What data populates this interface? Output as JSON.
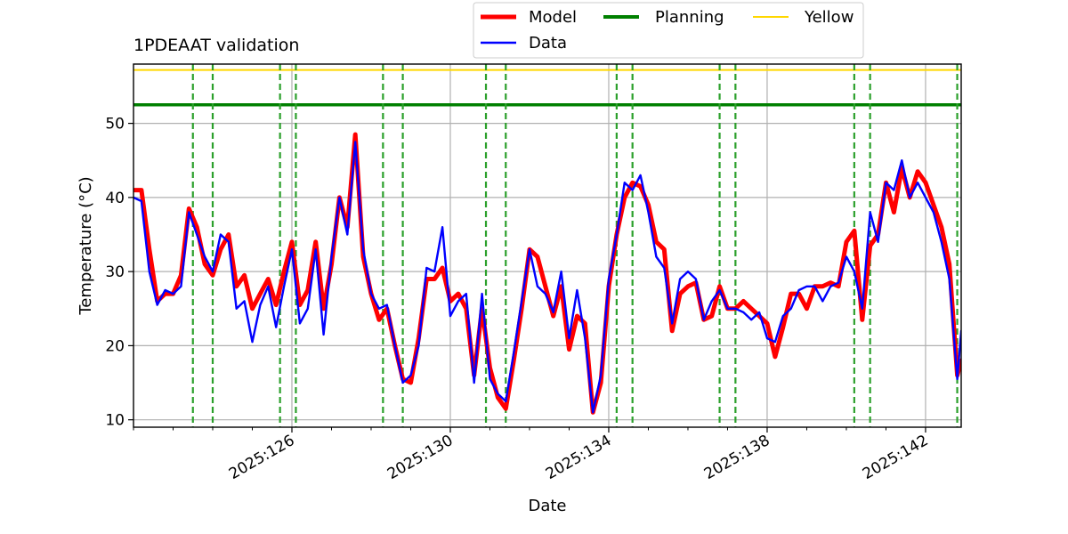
{
  "chart_data": {
    "type": "line",
    "title": "1PDEAAT validation",
    "xlabel": "Date",
    "ylabel": "Temperature ($^\\circ$C)",
    "ylabel_display": "Temperature (°C)",
    "xlim": [
      2025.122,
      2025.1429
    ],
    "ylim": [
      9,
      58
    ],
    "x_tick_values": [
      2025.126,
      2025.13,
      2025.134,
      2025.138,
      2025.142
    ],
    "x_tick_labels": [
      "2025:126",
      "2025:130",
      "2025:134",
      "2025:138",
      "2025:142"
    ],
    "y_ticks": [
      10,
      20,
      30,
      40,
      50
    ],
    "grid": true,
    "legend_position": "top-center (outside)",
    "legend_entries": [
      "Model",
      "Data",
      "Planning",
      "Yellow"
    ],
    "colors": {
      "model": "#ff0000",
      "data": "#0000ff",
      "planning": "#008000",
      "yellow": "#ffd700",
      "vlines": "#2ca02c"
    },
    "hlines": [
      {
        "name": "Planning",
        "y": 52.5
      },
      {
        "name": "Yellow",
        "y": 57.2
      }
    ],
    "vlines_x": [
      2025.1235,
      2025.124,
      2025.1257,
      2025.1261,
      2025.1283,
      2025.1288,
      2025.1309,
      2025.1314,
      2025.1342,
      2025.1346,
      2025.1368,
      2025.1372,
      2025.1402,
      2025.1406,
      2025.1428
    ],
    "series": [
      {
        "name": "Model",
        "x": [
          2025.122,
          2025.1222,
          2025.1224,
          2025.1226,
          2025.1228,
          2025.123,
          2025.1232,
          2025.1234,
          2025.1236,
          2025.1238,
          2025.124,
          2025.1242,
          2025.1244,
          2025.1246,
          2025.1248,
          2025.125,
          2025.1252,
          2025.1254,
          2025.1256,
          2025.1258,
          2025.126,
          2025.1262,
          2025.1264,
          2025.1266,
          2025.1268,
          2025.127,
          2025.1272,
          2025.1274,
          2025.1276,
          2025.1278,
          2025.128,
          2025.1282,
          2025.1284,
          2025.1286,
          2025.1288,
          2025.129,
          2025.1292,
          2025.1294,
          2025.1296,
          2025.1298,
          2025.13,
          2025.1302,
          2025.1304,
          2025.1306,
          2025.1308,
          2025.131,
          2025.1312,
          2025.1314,
          2025.1316,
          2025.1318,
          2025.132,
          2025.1322,
          2025.1324,
          2025.1326,
          2025.1328,
          2025.133,
          2025.1332,
          2025.1334,
          2025.1336,
          2025.1338,
          2025.134,
          2025.1342,
          2025.1344,
          2025.1346,
          2025.1348,
          2025.135,
          2025.1352,
          2025.1354,
          2025.1356,
          2025.1358,
          2025.136,
          2025.1362,
          2025.1364,
          2025.1366,
          2025.1368,
          2025.137,
          2025.1372,
          2025.1374,
          2025.1376,
          2025.1378,
          2025.138,
          2025.1382,
          2025.1384,
          2025.1386,
          2025.1388,
          2025.139,
          2025.1392,
          2025.1394,
          2025.1396,
          2025.1398,
          2025.14,
          2025.1402,
          2025.1404,
          2025.1406,
          2025.1408,
          2025.141,
          2025.1412,
          2025.1414,
          2025.1416,
          2025.1418,
          2025.142,
          2025.1422,
          2025.1424,
          2025.1426,
          2025.1428,
          2025.1429
        ],
        "y": [
          41.0,
          41.0,
          33.0,
          26.0,
          27.0,
          27.0,
          29.5,
          38.5,
          36.0,
          31.0,
          29.5,
          33.0,
          35.0,
          28.0,
          29.5,
          25.0,
          27.0,
          29.0,
          25.5,
          30.0,
          34.0,
          25.5,
          27.5,
          34.0,
          25.0,
          31.0,
          40.0,
          36.0,
          48.5,
          32.0,
          27.0,
          23.5,
          25.0,
          20.0,
          15.5,
          15.0,
          21.0,
          29.0,
          29.0,
          30.5,
          26.0,
          27.0,
          25.0,
          16.0,
          25.0,
          17.0,
          13.0,
          11.5,
          18.0,
          25.0,
          33.0,
          32.0,
          28.0,
          24.0,
          28.0,
          19.5,
          24.0,
          23.0,
          11.0,
          15.0,
          28.0,
          35.0,
          40.0,
          42.0,
          41.5,
          39.0,
          34.0,
          33.0,
          22.0,
          27.0,
          28.0,
          28.5,
          23.5,
          24.0,
          28.0,
          25.0,
          25.0,
          26.0,
          25.0,
          24.0,
          23.0,
          18.5,
          22.5,
          27.0,
          27.0,
          25.0,
          28.0,
          28.0,
          28.5,
          28.0,
          34.0,
          35.5,
          23.5,
          33.5,
          35.0,
          42.0,
          38.0,
          44.0,
          40.0,
          43.5,
          42.0,
          39.0,
          36.0,
          31.0,
          16.0,
          18.0
        ]
      },
      {
        "name": "Data",
        "x": [
          2025.122,
          2025.1222,
          2025.1224,
          2025.1226,
          2025.1228,
          2025.123,
          2025.1232,
          2025.1234,
          2025.1236,
          2025.1238,
          2025.124,
          2025.1242,
          2025.1244,
          2025.1246,
          2025.1248,
          2025.125,
          2025.1252,
          2025.1254,
          2025.1256,
          2025.1258,
          2025.126,
          2025.1262,
          2025.1264,
          2025.1266,
          2025.1268,
          2025.127,
          2025.1272,
          2025.1274,
          2025.1276,
          2025.1278,
          2025.128,
          2025.1282,
          2025.1284,
          2025.1286,
          2025.1288,
          2025.129,
          2025.1292,
          2025.1294,
          2025.1296,
          2025.1298,
          2025.13,
          2025.1302,
          2025.1304,
          2025.1306,
          2025.1308,
          2025.131,
          2025.1312,
          2025.1314,
          2025.1316,
          2025.1318,
          2025.132,
          2025.1322,
          2025.1324,
          2025.1326,
          2025.1328,
          2025.133,
          2025.1332,
          2025.1334,
          2025.1336,
          2025.1338,
          2025.134,
          2025.1342,
          2025.1344,
          2025.1346,
          2025.1348,
          2025.135,
          2025.1352,
          2025.1354,
          2025.1356,
          2025.1358,
          2025.136,
          2025.1362,
          2025.1364,
          2025.1366,
          2025.1368,
          2025.137,
          2025.1372,
          2025.1374,
          2025.1376,
          2025.1378,
          2025.138,
          2025.1382,
          2025.1384,
          2025.1386,
          2025.1388,
          2025.139,
          2025.1392,
          2025.1394,
          2025.1396,
          2025.1398,
          2025.14,
          2025.1402,
          2025.1404,
          2025.1406,
          2025.1408,
          2025.141,
          2025.1412,
          2025.1414,
          2025.1416,
          2025.1418,
          2025.142,
          2025.1422,
          2025.1424,
          2025.1426,
          2025.1428,
          2025.1429
        ],
        "y": [
          40.0,
          39.5,
          30.0,
          25.5,
          27.5,
          27.0,
          28.0,
          38.0,
          35.0,
          32.0,
          30.0,
          35.0,
          34.0,
          25.0,
          26.0,
          20.5,
          25.5,
          28.0,
          22.5,
          28.0,
          33.0,
          23.0,
          25.0,
          33.0,
          21.5,
          32.0,
          40.0,
          35.0,
          47.5,
          33.0,
          27.0,
          25.0,
          25.5,
          20.0,
          15.0,
          16.0,
          20.0,
          30.5,
          30.0,
          36.0,
          24.0,
          26.0,
          27.0,
          15.0,
          27.0,
          15.5,
          13.5,
          12.5,
          19.0,
          26.0,
          33.0,
          28.0,
          27.0,
          24.5,
          30.0,
          21.0,
          27.5,
          21.0,
          11.0,
          16.0,
          29.0,
          35.0,
          42.0,
          41.0,
          43.0,
          38.0,
          32.0,
          30.5,
          23.0,
          29.0,
          30.0,
          29.0,
          23.5,
          26.0,
          27.5,
          25.0,
          25.0,
          24.5,
          23.5,
          24.5,
          21.0,
          20.5,
          24.0,
          25.0,
          27.5,
          28.0,
          28.0,
          26.0,
          28.0,
          28.5,
          32.0,
          30.0,
          25.0,
          38.0,
          34.0,
          42.0,
          41.0,
          45.0,
          40.0,
          42.0,
          40.0,
          38.0,
          34.0,
          29.0,
          15.5,
          22.0
        ]
      }
    ]
  }
}
